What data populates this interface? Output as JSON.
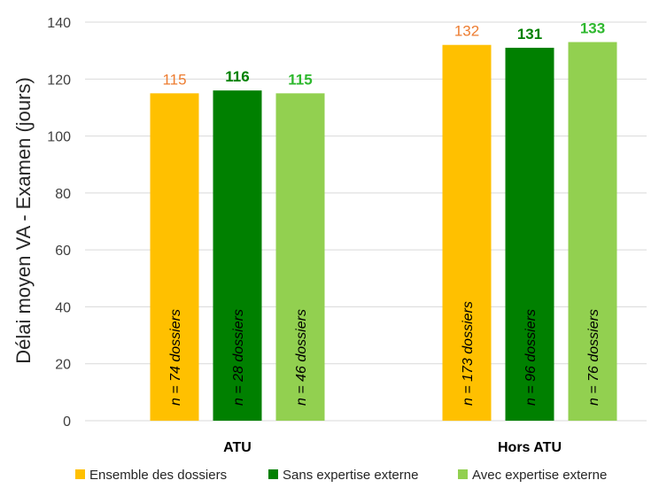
{
  "chart_data": {
    "type": "bar",
    "categories": [
      "ATU",
      "Hors ATU"
    ],
    "ylabel": "Délai moyen VA - Examen (jours)",
    "ylim": [
      0,
      140
    ],
    "yticks": [
      0,
      20,
      40,
      60,
      80,
      100,
      120,
      140
    ],
    "grid": true,
    "legend_position": "bottom",
    "series": [
      {
        "name": "Ensemble des dossiers",
        "color": "#FFC000",
        "label_color": "#ED7D31",
        "label_bold": false,
        "values": [
          115,
          132
        ],
        "value_labels": [
          "115",
          "132"
        ],
        "inner_labels": [
          "n = 74 dossiers",
          "n = 173 dossiers"
        ]
      },
      {
        "name": "Sans expertise externe",
        "color": "#008000",
        "label_color": "#008000",
        "label_bold": true,
        "values": [
          116,
          131
        ],
        "value_labels": [
          "116",
          "131"
        ],
        "inner_labels": [
          "n = 28 dossiers",
          "n = 96 dossiers"
        ]
      },
      {
        "name": "Avec expertise externe",
        "color": "#92D050",
        "label_color": "#2EB82E",
        "label_bold": true,
        "values": [
          115,
          133
        ],
        "value_labels": [
          "115",
          "133"
        ],
        "inner_labels": [
          "n = 46 dossiers",
          "n = 76 dossiers"
        ]
      }
    ]
  }
}
